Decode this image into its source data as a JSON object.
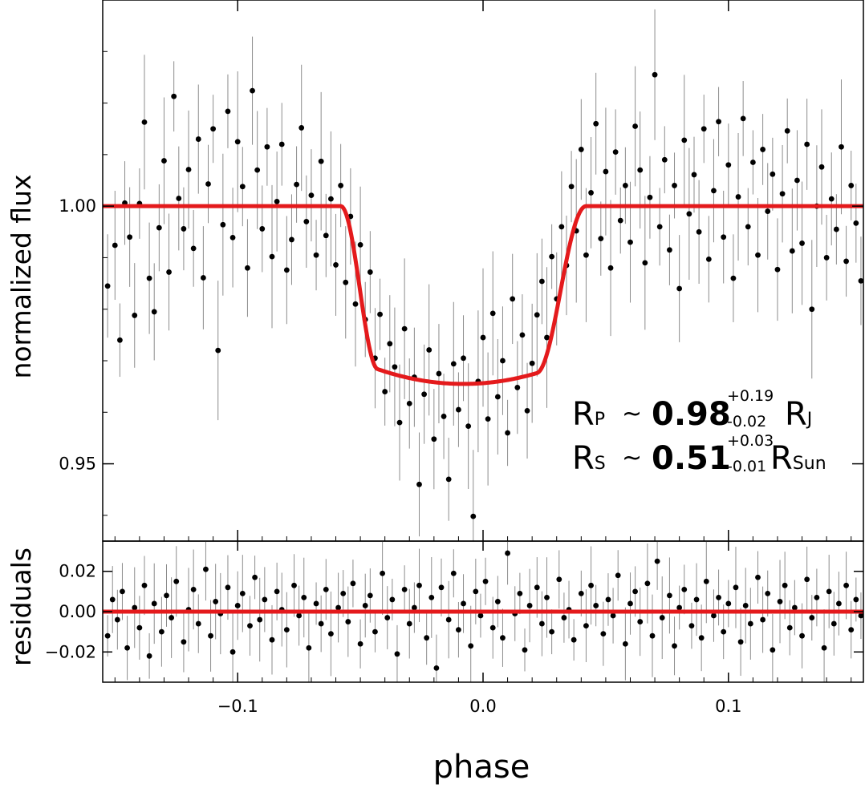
{
  "chart_data": [
    {
      "type": "scatter",
      "panel": "main",
      "xlabel": "phase",
      "ylabel": "normalized flux",
      "xlim": [
        -0.155,
        0.155
      ],
      "ylim": [
        0.935,
        1.04
      ],
      "xticks": [
        -0.1,
        0.0,
        0.1
      ],
      "xtick_labels": [
        "−0.1",
        "0.0",
        "0.1"
      ],
      "yticks": [
        0.95,
        1.0
      ],
      "ytick_labels": [
        "0.95",
        "1.00"
      ],
      "model": {
        "name": "transit model",
        "color": "#e41a1c",
        "baseline": 1.0,
        "depth_min": 0.9655,
        "t1": -0.058,
        "t2": -0.043,
        "t3": 0.022,
        "t4": 0.042,
        "center": -0.008
      },
      "points": [
        [
          -0.153,
          0.9845
        ],
        [
          -0.15,
          0.9924
        ],
        [
          -0.148,
          0.974
        ],
        [
          -0.146,
          1.0006
        ],
        [
          -0.144,
          0.994
        ],
        [
          -0.142,
          0.9788
        ],
        [
          -0.14,
          1.0005
        ],
        [
          -0.138,
          1.0163
        ],
        [
          -0.136,
          0.986
        ],
        [
          -0.134,
          0.9795
        ],
        [
          -0.132,
          0.9958
        ],
        [
          -0.13,
          1.0088
        ],
        [
          -0.128,
          0.9872
        ],
        [
          -0.126,
          1.0213
        ],
        [
          -0.124,
          1.0015
        ],
        [
          -0.122,
          0.9956
        ],
        [
          -0.12,
          1.0071
        ],
        [
          -0.118,
          0.9918
        ],
        [
          -0.116,
          1.013
        ],
        [
          -0.114,
          0.9861
        ],
        [
          -0.112,
          1.0043
        ],
        [
          -0.11,
          1.015
        ],
        [
          -0.108,
          0.972
        ],
        [
          -0.106,
          0.9964
        ],
        [
          -0.104,
          1.0184
        ],
        [
          -0.102,
          0.9939
        ],
        [
          -0.1,
          1.0125
        ],
        [
          -0.098,
          1.0038
        ],
        [
          -0.096,
          0.988
        ],
        [
          -0.094,
          1.0224
        ],
        [
          -0.092,
          1.007
        ],
        [
          -0.09,
          0.9956
        ],
        [
          -0.088,
          1.0115
        ],
        [
          -0.086,
          0.9902
        ],
        [
          -0.084,
          1.0009
        ],
        [
          -0.082,
          1.012
        ],
        [
          -0.08,
          0.9876
        ],
        [
          -0.078,
          0.9935
        ],
        [
          -0.076,
          1.0042
        ],
        [
          -0.074,
          1.0152
        ],
        [
          -0.072,
          0.997
        ],
        [
          -0.07,
          1.0021
        ],
        [
          -0.068,
          0.9905
        ],
        [
          -0.066,
          1.0087
        ],
        [
          -0.064,
          0.9943
        ],
        [
          -0.062,
          1.0014
        ],
        [
          -0.06,
          0.9886
        ],
        [
          -0.058,
          1.004
        ],
        [
          -0.056,
          0.9852
        ],
        [
          -0.054,
          0.998
        ],
        [
          -0.052,
          0.981
        ],
        [
          -0.05,
          0.9925
        ],
        [
          -0.048,
          0.978
        ],
        [
          -0.046,
          0.9872
        ],
        [
          -0.044,
          0.9705
        ],
        [
          -0.042,
          0.979
        ],
        [
          -0.04,
          0.964
        ],
        [
          -0.038,
          0.9733
        ],
        [
          -0.036,
          0.9688
        ],
        [
          -0.034,
          0.958
        ],
        [
          -0.032,
          0.9762
        ],
        [
          -0.03,
          0.9617
        ],
        [
          -0.028,
          0.9668
        ],
        [
          -0.026,
          0.946
        ],
        [
          -0.024,
          0.9635
        ],
        [
          -0.022,
          0.9721
        ],
        [
          -0.02,
          0.9548
        ],
        [
          -0.018,
          0.9675
        ],
        [
          -0.016,
          0.9592
        ],
        [
          -0.014,
          0.947
        ],
        [
          -0.012,
          0.9694
        ],
        [
          -0.01,
          0.9605
        ],
        [
          -0.008,
          0.9705
        ],
        [
          -0.006,
          0.9573
        ],
        [
          -0.004,
          0.9398
        ],
        [
          -0.002,
          0.966
        ],
        [
          0.0,
          0.9745
        ],
        [
          0.002,
          0.9587
        ],
        [
          0.004,
          0.9792
        ],
        [
          0.006,
          0.963
        ],
        [
          0.008,
          0.97
        ],
        [
          0.01,
          0.956
        ],
        [
          0.012,
          0.982
        ],
        [
          0.014,
          0.9648
        ],
        [
          0.016,
          0.975
        ],
        [
          0.018,
          0.9603
        ],
        [
          0.02,
          0.9695
        ],
        [
          0.022,
          0.9789
        ],
        [
          0.024,
          0.9854
        ],
        [
          0.026,
          0.9745
        ],
        [
          0.028,
          0.9902
        ],
        [
          0.03,
          0.982
        ],
        [
          0.032,
          0.996
        ],
        [
          0.034,
          0.9885
        ],
        [
          0.036,
          1.0038
        ],
        [
          0.038,
          0.9952
        ],
        [
          0.04,
          1.011
        ],
        [
          0.042,
          0.9905
        ],
        [
          0.044,
          1.0026
        ],
        [
          0.046,
          1.016
        ],
        [
          0.048,
          0.9937
        ],
        [
          0.05,
          1.0067
        ],
        [
          0.052,
          0.988
        ],
        [
          0.054,
          1.0105
        ],
        [
          0.056,
          0.9972
        ],
        [
          0.058,
          1.004
        ],
        [
          0.06,
          0.993
        ],
        [
          0.062,
          1.0155
        ],
        [
          0.064,
          1.007
        ],
        [
          0.066,
          0.989
        ],
        [
          0.068,
          1.0017
        ],
        [
          0.07,
          1.0255
        ],
        [
          0.072,
          0.996
        ],
        [
          0.074,
          1.009
        ],
        [
          0.076,
          0.9915
        ],
        [
          0.078,
          1.004
        ],
        [
          0.08,
          0.984
        ],
        [
          0.082,
          1.0128
        ],
        [
          0.084,
          0.9985
        ],
        [
          0.086,
          1.0061
        ],
        [
          0.088,
          0.995
        ],
        [
          0.09,
          1.015
        ],
        [
          0.092,
          0.9897
        ],
        [
          0.094,
          1.003
        ],
        [
          0.096,
          1.0164
        ],
        [
          0.098,
          0.994
        ],
        [
          0.1,
          1.008
        ],
        [
          0.102,
          0.986
        ],
        [
          0.104,
          1.0018
        ],
        [
          0.106,
          1.017
        ],
        [
          0.108,
          0.996
        ],
        [
          0.11,
          1.0085
        ],
        [
          0.112,
          0.9905
        ],
        [
          0.114,
          1.011
        ],
        [
          0.116,
          0.999
        ],
        [
          0.118,
          1.0062
        ],
        [
          0.12,
          0.9877
        ],
        [
          0.122,
          1.0024
        ],
        [
          0.124,
          1.0146
        ],
        [
          0.126,
          0.9913
        ],
        [
          0.128,
          1.005
        ],
        [
          0.13,
          0.9928
        ],
        [
          0.132,
          1.012
        ],
        [
          0.134,
          0.98
        ],
        [
          0.136,
          1.0
        ],
        [
          0.138,
          1.0076
        ],
        [
          0.14,
          0.99
        ],
        [
          0.142,
          1.0014
        ],
        [
          0.144,
          0.9955
        ],
        [
          0.146,
          1.0115
        ],
        [
          0.148,
          0.9893
        ],
        [
          0.15,
          1.004
        ],
        [
          0.152,
          0.9967
        ],
        [
          0.154,
          0.9855
        ]
      ],
      "annotations": [
        {
          "symbol": "R",
          "sub": "P",
          "value": "0.98",
          "plus": "+0.19",
          "minus": "-0.02",
          "unit": "R",
          "unit_sub": "J"
        },
        {
          "symbol": "R",
          "sub": "S",
          "value": "0.51",
          "plus": "+0.03",
          "minus": "-0.01",
          "unit": "R",
          "unit_sub": "Sun"
        }
      ],
      "approx_sign": "~"
    },
    {
      "type": "scatter",
      "panel": "residuals",
      "xlabel": "phase",
      "ylabel": "residuals",
      "xlim": [
        -0.155,
        0.155
      ],
      "ylim": [
        -0.035,
        0.035
      ],
      "yticks": [
        -0.02,
        0.0,
        0.02
      ],
      "ytick_labels": [
        "−0.02",
        "0.00",
        "0.02"
      ],
      "model_value": 0.0,
      "points": [
        [
          -0.153,
          -0.012
        ],
        [
          -0.151,
          0.006
        ],
        [
          -0.149,
          -0.004
        ],
        [
          -0.147,
          0.01
        ],
        [
          -0.145,
          -0.018
        ],
        [
          -0.142,
          0.002
        ],
        [
          -0.14,
          -0.008
        ],
        [
          -0.138,
          0.013
        ],
        [
          -0.136,
          -0.022
        ],
        [
          -0.134,
          0.004
        ],
        [
          -0.131,
          -0.01
        ],
        [
          -0.129,
          0.008
        ],
        [
          -0.127,
          -0.003
        ],
        [
          -0.125,
          0.015
        ],
        [
          -0.122,
          -0.015
        ],
        [
          -0.12,
          0.001
        ],
        [
          -0.118,
          0.011
        ],
        [
          -0.116,
          -0.006
        ],
        [
          -0.113,
          0.021
        ],
        [
          -0.111,
          -0.012
        ],
        [
          -0.109,
          0.005
        ],
        [
          -0.107,
          -0.001
        ],
        [
          -0.104,
          0.012
        ],
        [
          -0.102,
          -0.02
        ],
        [
          -0.1,
          0.003
        ],
        [
          -0.098,
          0.009
        ],
        [
          -0.095,
          -0.007
        ],
        [
          -0.093,
          0.017
        ],
        [
          -0.091,
          -0.004
        ],
        [
          -0.089,
          0.006
        ],
        [
          -0.086,
          -0.014
        ],
        [
          -0.084,
          0.01
        ],
        [
          -0.082,
          0.001
        ],
        [
          -0.08,
          -0.009
        ],
        [
          -0.077,
          0.013
        ],
        [
          -0.075,
          -0.002
        ],
        [
          -0.073,
          0.007
        ],
        [
          -0.071,
          -0.018
        ],
        [
          -0.068,
          0.004
        ],
        [
          -0.066,
          -0.006
        ],
        [
          -0.064,
          0.011
        ],
        [
          -0.062,
          -0.011
        ],
        [
          -0.059,
          0.002
        ],
        [
          -0.057,
          0.009
        ],
        [
          -0.055,
          -0.005
        ],
        [
          -0.053,
          0.014
        ],
        [
          -0.05,
          -0.016
        ],
        [
          -0.048,
          0.003
        ],
        [
          -0.046,
          0.008
        ],
        [
          -0.044,
          -0.01
        ],
        [
          -0.041,
          0.019
        ],
        [
          -0.039,
          -0.003
        ],
        [
          -0.037,
          0.006
        ],
        [
          -0.035,
          -0.021
        ],
        [
          -0.032,
          0.011
        ],
        [
          -0.03,
          -0.006
        ],
        [
          -0.028,
          0.002
        ],
        [
          -0.026,
          0.013
        ],
        [
          -0.023,
          -0.013
        ],
        [
          -0.021,
          0.007
        ],
        [
          -0.019,
          -0.028
        ],
        [
          -0.017,
          0.012
        ],
        [
          -0.014,
          -0.004
        ],
        [
          -0.012,
          0.019
        ],
        [
          -0.01,
          -0.009
        ],
        [
          -0.008,
          0.004
        ],
        [
          -0.005,
          -0.017
        ],
        [
          -0.003,
          0.01
        ],
        [
          -0.001,
          -0.002
        ],
        [
          0.001,
          0.015
        ],
        [
          0.004,
          -0.008
        ],
        [
          0.006,
          0.005
        ],
        [
          0.008,
          -0.013
        ],
        [
          0.01,
          0.029
        ],
        [
          0.013,
          -0.001
        ],
        [
          0.015,
          0.009
        ],
        [
          0.017,
          -0.019
        ],
        [
          0.019,
          0.003
        ],
        [
          0.022,
          0.012
        ],
        [
          0.024,
          -0.006
        ],
        [
          0.026,
          0.007
        ],
        [
          0.028,
          -0.01
        ],
        [
          0.031,
          0.016
        ],
        [
          0.033,
          -0.003
        ],
        [
          0.035,
          0.001
        ],
        [
          0.037,
          -0.014
        ],
        [
          0.04,
          0.009
        ],
        [
          0.042,
          -0.007
        ],
        [
          0.044,
          0.013
        ],
        [
          0.046,
          0.003
        ],
        [
          0.049,
          -0.011
        ],
        [
          0.051,
          0.006
        ],
        [
          0.053,
          -0.002
        ],
        [
          0.055,
          0.018
        ],
        [
          0.058,
          -0.016
        ],
        [
          0.06,
          0.004
        ],
        [
          0.062,
          0.01
        ],
        [
          0.064,
          -0.005
        ],
        [
          0.067,
          0.014
        ],
        [
          0.069,
          -0.012
        ],
        [
          0.071,
          0.025
        ],
        [
          0.073,
          -0.003
        ],
        [
          0.076,
          0.008
        ],
        [
          0.078,
          -0.017
        ],
        [
          0.08,
          0.002
        ],
        [
          0.082,
          0.011
        ],
        [
          0.085,
          -0.007
        ],
        [
          0.087,
          0.006
        ],
        [
          0.089,
          -0.013
        ],
        [
          0.091,
          0.015
        ],
        [
          0.094,
          -0.002
        ],
        [
          0.096,
          0.007
        ],
        [
          0.098,
          -0.01
        ],
        [
          0.1,
          0.004
        ],
        [
          0.103,
          0.012
        ],
        [
          0.105,
          -0.015
        ],
        [
          0.107,
          0.003
        ],
        [
          0.109,
          -0.006
        ],
        [
          0.112,
          0.017
        ],
        [
          0.114,
          -0.004
        ],
        [
          0.116,
          0.009
        ],
        [
          0.118,
          -0.019
        ],
        [
          0.121,
          0.005
        ],
        [
          0.123,
          0.013
        ],
        [
          0.125,
          -0.008
        ],
        [
          0.127,
          0.002
        ],
        [
          0.13,
          -0.012
        ],
        [
          0.132,
          0.016
        ],
        [
          0.134,
          -0.003
        ],
        [
          0.136,
          0.007
        ],
        [
          0.139,
          -0.018
        ],
        [
          0.141,
          0.01
        ],
        [
          0.143,
          -0.006
        ],
        [
          0.145,
          0.004
        ],
        [
          0.148,
          0.013
        ],
        [
          0.15,
          -0.009
        ],
        [
          0.152,
          0.006
        ],
        [
          0.154,
          -0.002
        ]
      ]
    }
  ],
  "colors": {
    "model": "#e41a1c",
    "points": "#000000",
    "errorbars": "#8c8c8c",
    "frame": "#000000"
  }
}
